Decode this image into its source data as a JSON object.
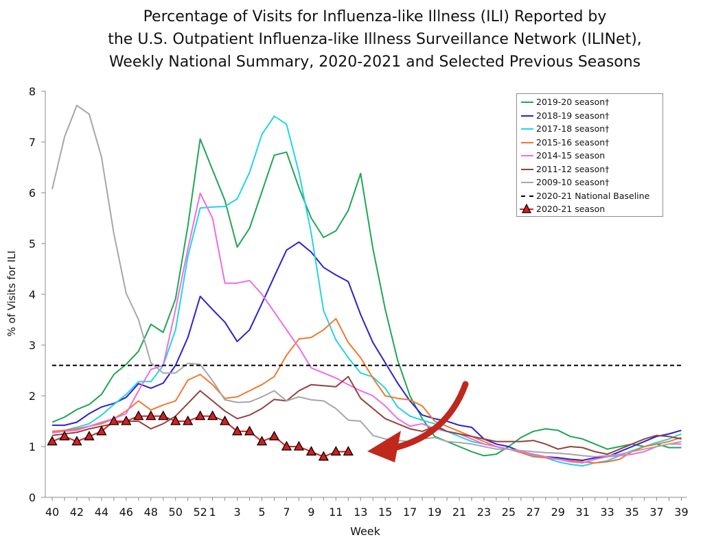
{
  "chart_data": {
    "type": "line",
    "title": [
      "Percentage of Visits for Influenza-like Illness (ILI) Reported by",
      "the U.S. Outpatient Influenza-like Illness Surveillance Network (ILINet),",
      "Weekly National Summary, 2020-2021 and Selected Previous Seasons"
    ],
    "xlabel": "Week",
    "ylabel": "% of Visits for ILI",
    "ylim": [
      0,
      8
    ],
    "yticks": [
      0,
      1,
      2,
      3,
      4,
      5,
      6,
      7,
      8
    ],
    "weeks": [
      40,
      41,
      42,
      43,
      44,
      45,
      46,
      47,
      48,
      49,
      50,
      51,
      52,
      1,
      2,
      3,
      4,
      5,
      6,
      7,
      8,
      9,
      10,
      11,
      12,
      13,
      14,
      15,
      16,
      17,
      18,
      19,
      20,
      21,
      22,
      23,
      24,
      25,
      26,
      27,
      28,
      29,
      30,
      31,
      32,
      33,
      34,
      35,
      36,
      37,
      38,
      39
    ],
    "xtick_labels": [
      "40",
      "42",
      "44",
      "46",
      "48",
      "50",
      "52",
      "1",
      "3",
      "5",
      "7",
      "9",
      "11",
      "13",
      "15",
      "17",
      "19",
      "21",
      "23",
      "25",
      "27",
      "29",
      "31",
      "33",
      "35",
      "37",
      "39"
    ],
    "legend_position": "top-right",
    "series": [
      {
        "name": "2019-20 season†",
        "color": "#1fa552",
        "style": "solid",
        "values": [
          1.48,
          1.58,
          1.73,
          1.83,
          2.03,
          2.42,
          2.62,
          2.88,
          3.41,
          3.25,
          3.91,
          5.35,
          7.06,
          6.45,
          5.85,
          4.93,
          5.3,
          6.02,
          6.74,
          6.8,
          6.1,
          5.5,
          5.12,
          5.25,
          5.65,
          6.38,
          4.9,
          3.7,
          2.7,
          2.0,
          1.55,
          1.2,
          1.1,
          1.0,
          0.9,
          0.82,
          0.85,
          1.0,
          1.18,
          1.3,
          1.35,
          1.32,
          1.2,
          1.15,
          1.05,
          0.95,
          1.0,
          1.05,
          1.0,
          1.05,
          0.98,
          0.98
        ]
      },
      {
        "name": "2018-19 season†",
        "color": "#2a1fd6",
        "style": "solid",
        "values": [
          1.42,
          1.42,
          1.48,
          1.65,
          1.78,
          1.85,
          1.97,
          2.24,
          2.15,
          2.25,
          2.6,
          3.15,
          3.96,
          3.7,
          3.45,
          3.07,
          3.3,
          3.82,
          4.35,
          4.87,
          5.03,
          4.83,
          4.53,
          4.38,
          4.25,
          3.6,
          3.05,
          2.65,
          2.25,
          1.9,
          1.62,
          1.55,
          1.5,
          1.42,
          1.38,
          1.15,
          1.05,
          1.0,
          0.9,
          0.85,
          0.8,
          0.78,
          0.75,
          0.73,
          0.78,
          0.8,
          0.9,
          1.0,
          1.1,
          1.2,
          1.25,
          1.32
        ]
      },
      {
        "name": "2017-18 season†",
        "color": "#22d3e3",
        "style": "solid",
        "values": [
          1.29,
          1.32,
          1.38,
          1.45,
          1.62,
          1.83,
          2.03,
          2.28,
          2.28,
          2.6,
          3.3,
          4.75,
          5.7,
          5.72,
          5.73,
          5.88,
          6.4,
          7.15,
          7.51,
          7.35,
          6.4,
          5.2,
          3.68,
          3.1,
          2.75,
          2.45,
          2.37,
          2.15,
          1.78,
          1.6,
          1.52,
          1.45,
          1.3,
          1.2,
          1.1,
          1.05,
          1.0,
          0.95,
          0.9,
          0.82,
          0.78,
          0.7,
          0.65,
          0.62,
          0.68,
          0.72,
          0.82,
          0.92,
          1.0,
          1.08,
          1.15,
          1.25
        ]
      },
      {
        "name": "2015-16 season†",
        "color": "#f2782a",
        "style": "solid",
        "values": [
          1.3,
          1.32,
          1.35,
          1.4,
          1.45,
          1.55,
          1.7,
          1.9,
          1.72,
          1.82,
          1.9,
          2.31,
          2.42,
          2.22,
          1.95,
          1.98,
          2.1,
          2.22,
          2.38,
          2.8,
          3.12,
          3.15,
          3.3,
          3.52,
          3.05,
          2.75,
          2.35,
          2.0,
          1.95,
          1.92,
          1.8,
          1.5,
          1.4,
          1.3,
          1.2,
          1.1,
          1.0,
          0.95,
          0.88,
          0.8,
          0.78,
          0.75,
          0.72,
          0.7,
          0.68,
          0.7,
          0.75,
          0.9,
          1.0,
          1.05,
          1.1,
          1.18
        ]
      },
      {
        "name": "2014-15 season",
        "color": "#ee6ce4",
        "style": "solid",
        "values": [
          1.27,
          1.3,
          1.32,
          1.4,
          1.48,
          1.55,
          1.65,
          2.1,
          2.52,
          2.6,
          3.7,
          4.9,
          5.99,
          5.5,
          4.22,
          4.22,
          4.27,
          4.0,
          3.65,
          3.3,
          2.95,
          2.55,
          2.45,
          2.35,
          2.22,
          2.1,
          2.0,
          1.8,
          1.55,
          1.4,
          1.45,
          1.35,
          1.3,
          1.25,
          1.15,
          1.05,
          1.0,
          0.95,
          0.9,
          0.85,
          0.8,
          0.75,
          0.7,
          0.68,
          0.75,
          0.8,
          0.82,
          0.85,
          0.9,
          1.0,
          1.05,
          1.05
        ]
      },
      {
        "name": "2011-12 season†",
        "color": "#93403b",
        "style": "solid",
        "values": [
          1.22,
          1.25,
          1.28,
          1.35,
          1.4,
          1.45,
          1.5,
          1.5,
          1.35,
          1.45,
          1.6,
          1.85,
          2.1,
          1.9,
          1.7,
          1.55,
          1.62,
          1.75,
          1.93,
          1.9,
          2.1,
          2.22,
          2.2,
          2.18,
          2.38,
          1.95,
          1.75,
          1.55,
          1.45,
          1.35,
          1.3,
          1.4,
          1.3,
          1.25,
          1.2,
          1.15,
          1.1,
          1.1,
          1.1,
          1.12,
          1.05,
          0.95,
          1.0,
          0.98,
          0.9,
          0.85,
          0.95,
          1.05,
          1.15,
          1.22,
          1.2,
          1.15
        ]
      },
      {
        "name": "2009-10 season†",
        "color": "#a6a6a6",
        "style": "solid",
        "values": [
          6.07,
          7.1,
          7.72,
          7.55,
          6.7,
          5.2,
          4.02,
          3.5,
          2.65,
          2.45,
          2.45,
          2.64,
          2.62,
          2.3,
          1.92,
          1.87,
          1.88,
          1.98,
          2.1,
          1.9,
          1.98,
          1.92,
          1.9,
          1.75,
          1.52,
          1.5,
          1.22,
          1.15,
          1.12,
          1.1,
          1.15,
          1.18,
          1.1,
          1.08,
          1.05,
          1.0,
          0.95,
          0.95,
          0.92,
          0.9,
          0.88,
          0.87,
          0.85,
          0.82,
          0.8,
          0.82,
          0.85,
          0.9,
          0.95,
          1.0,
          1.05,
          1.1
        ]
      },
      {
        "name": "2020-21 National Baseline",
        "color": "#000000",
        "style": "dashed",
        "constant": 2.6
      },
      {
        "name": "2020-21 season",
        "color": "#d32020",
        "style": "marker",
        "marker_fill": "#d32020",
        "values": [
          1.1,
          1.2,
          1.1,
          1.2,
          1.3,
          1.5,
          1.5,
          1.6,
          1.6,
          1.6,
          1.5,
          1.5,
          1.6,
          1.6,
          1.5,
          1.3,
          1.3,
          1.1,
          1.2,
          1.0,
          1.0,
          0.9,
          0.8,
          0.9,
          0.9
        ]
      }
    ],
    "annotation": {
      "type": "arrow",
      "color": "#c0281b",
      "description": "down-left curved arrow"
    }
  }
}
